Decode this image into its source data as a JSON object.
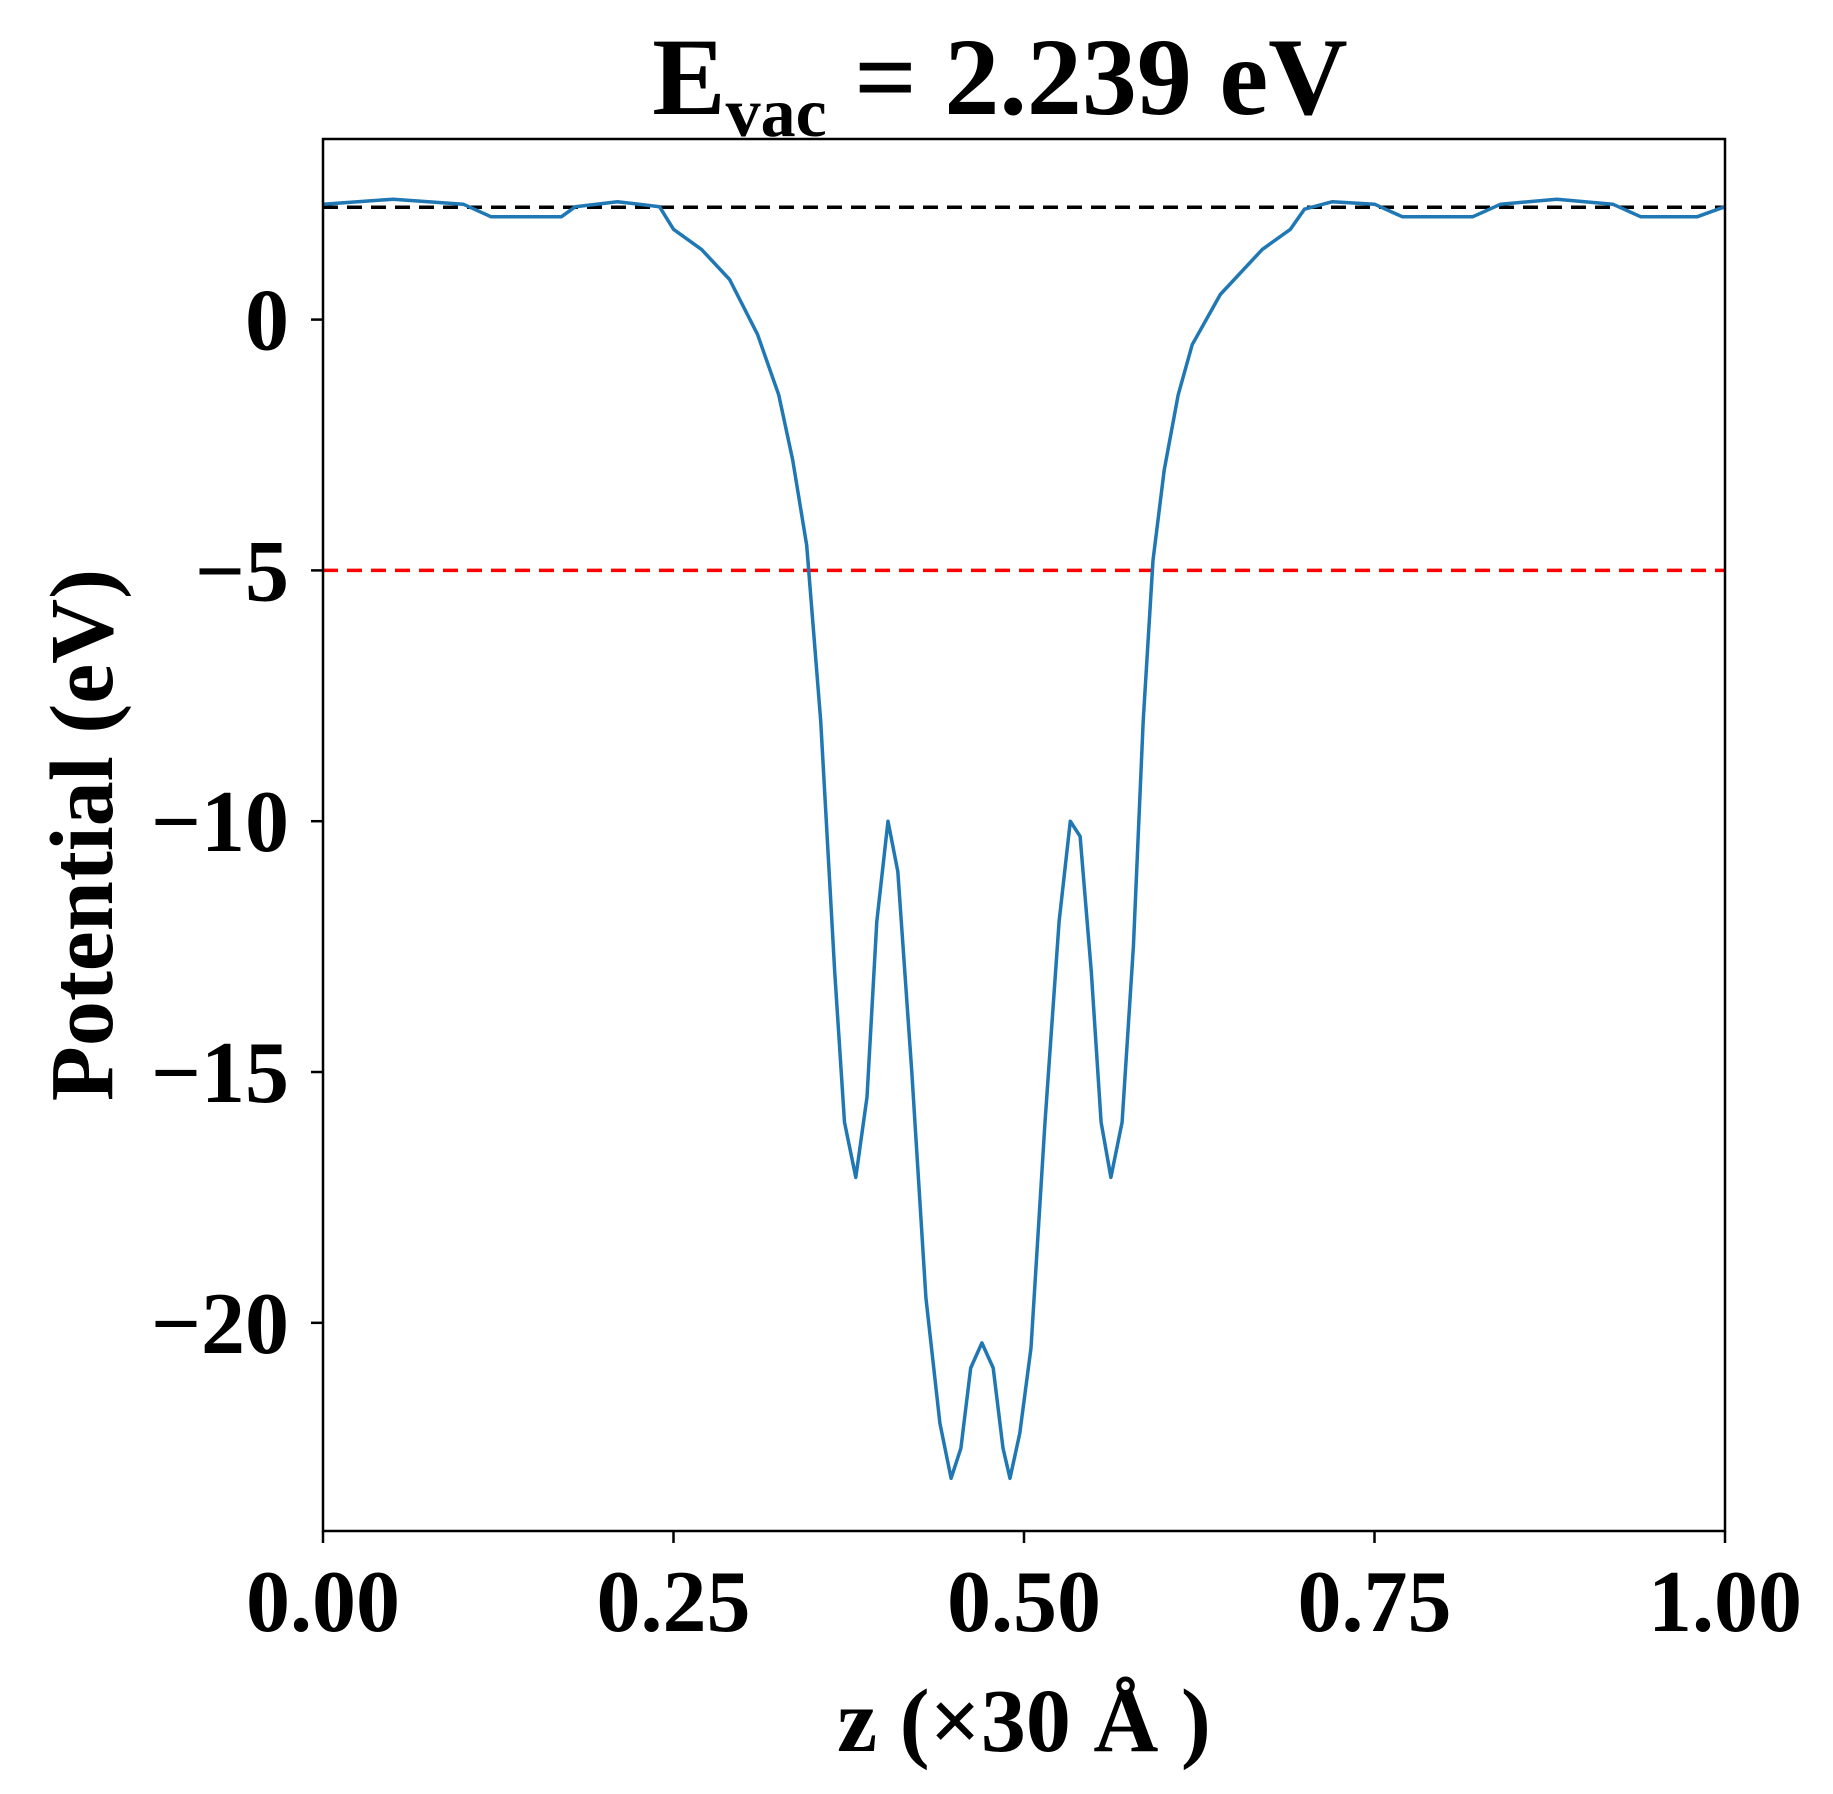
{
  "chart_data": {
    "type": "line",
    "title": {
      "symbol": "E",
      "subscript": "vac",
      "text": " = 2.239 eV"
    },
    "xlabel": "z (×30 Å )",
    "ylabel": "Potential (eV)",
    "xlim": [
      0,
      1
    ],
    "ylim": [
      -24.15,
      3.6
    ],
    "xticks": [
      {
        "value": 0,
        "label": "0.00"
      },
      {
        "value": 0.25,
        "label": "0.25"
      },
      {
        "value": 0.5,
        "label": "0.50"
      },
      {
        "value": 0.75,
        "label": "0.75"
      },
      {
        "value": 1,
        "label": "1.00"
      }
    ],
    "yticks": [
      0,
      {
        "value": -5,
        "label": "−5"
      },
      {
        "value": -10,
        "label": "−10"
      },
      {
        "value": -15,
        "label": "−15"
      },
      {
        "value": -20,
        "label": "−20"
      }
    ],
    "hlines": [
      {
        "y": 2.239,
        "color": "#000000"
      },
      {
        "y": -5,
        "color": "#ff0000"
      }
    ],
    "x": [
      0,
      0.05,
      0.1,
      0.12,
      0.17,
      0.18,
      0.21,
      0.24,
      0.25,
      0.27,
      0.29,
      0.31,
      0.325,
      0.335,
      0.345,
      0.355,
      0.365,
      0.372,
      0.38,
      0.388,
      0.395,
      0.403,
      0.41,
      0.42,
      0.43,
      0.44,
      0.448,
      0.455,
      0.462,
      0.47,
      0.478,
      0.485,
      0.49,
      0.497,
      0.505,
      0.515,
      0.525,
      0.533,
      0.54,
      0.548,
      0.555,
      0.562,
      0.57,
      0.578,
      0.585,
      0.592,
      0.6,
      0.61,
      0.62,
      0.64,
      0.67,
      0.69,
      0.7,
      0.72,
      0.75,
      0.77,
      0.82,
      0.84,
      0.88,
      0.92,
      0.94,
      0.98,
      1
    ],
    "series": [
      {
        "color": "#1f77b4",
        "values": [
          2.3,
          2.4,
          2.3,
          2.05,
          2.05,
          2.25,
          2.35,
          2.25,
          1.8,
          1.4,
          0.8,
          -0.3,
          -1.5,
          -2.8,
          -4.5,
          -8,
          -13,
          -16,
          -17.1,
          -15.5,
          -12,
          -10,
          -11,
          -15,
          -19.5,
          -22,
          -23.1,
          -22.5,
          -20.9,
          -20.4,
          -20.9,
          -22.5,
          -23.1,
          -22.2,
          -20.5,
          -16,
          -12,
          -10,
          -10.3,
          -13,
          -16,
          -17.1,
          -16,
          -12.5,
          -8,
          -4.8,
          -3,
          -1.5,
          -0.5,
          0.5,
          1.4,
          1.8,
          2.2,
          2.35,
          2.3,
          2.05,
          2.05,
          2.3,
          2.4,
          2.3,
          2.05,
          2.05,
          2.25
        ]
      }
    ]
  }
}
